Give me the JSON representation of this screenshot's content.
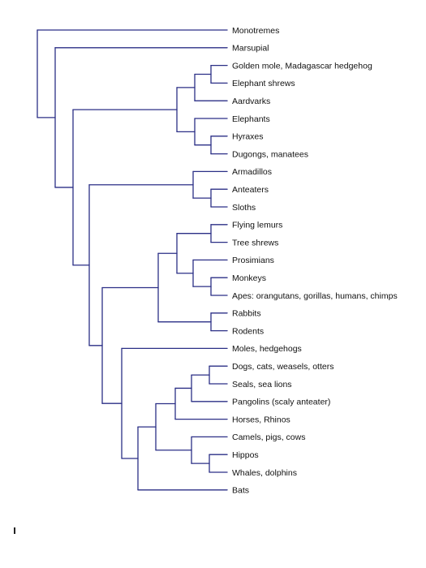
{
  "diagram": {
    "type": "phylogenetic-tree",
    "line_color": "#2b2f86",
    "taxa": [
      {
        "id": "monotremes",
        "label": "Monotremes"
      },
      {
        "id": "marsupial",
        "label": "Marsupial"
      },
      {
        "id": "golden-mole",
        "label": "Golden mole, Madagascar hedgehog"
      },
      {
        "id": "elephant-shrews",
        "label": "Elephant shrews"
      },
      {
        "id": "aardvarks",
        "label": "Aardvarks"
      },
      {
        "id": "elephants",
        "label": "Elephants"
      },
      {
        "id": "hyraxes",
        "label": "Hyraxes"
      },
      {
        "id": "dugongs",
        "label": "Dugongs, manatees"
      },
      {
        "id": "armadillos",
        "label": "Armadillos"
      },
      {
        "id": "anteaters",
        "label": "Anteaters"
      },
      {
        "id": "sloths",
        "label": "Sloths"
      },
      {
        "id": "flying-lemurs",
        "label": "Flying lemurs"
      },
      {
        "id": "tree-shrews",
        "label": "Tree shrews"
      },
      {
        "id": "prosimians",
        "label": "Prosimians"
      },
      {
        "id": "monkeys",
        "label": "Monkeys"
      },
      {
        "id": "apes",
        "label": "Apes: orangutans, gorillas, humans, chimps"
      },
      {
        "id": "rabbits",
        "label": "Rabbits"
      },
      {
        "id": "rodents",
        "label": "Rodents"
      },
      {
        "id": "moles",
        "label": "Moles, hedgehogs"
      },
      {
        "id": "dogs",
        "label": "Dogs, cats, weasels, otters"
      },
      {
        "id": "seals",
        "label": "Seals, sea lions"
      },
      {
        "id": "pangolins",
        "label": "Pangolins (scaly anteater)"
      },
      {
        "id": "horses",
        "label": "Horses, Rhinos"
      },
      {
        "id": "camels",
        "label": "Camels, pigs, cows"
      },
      {
        "id": "hippos",
        "label": "Hippos"
      },
      {
        "id": "whales",
        "label": "Whales, dolphins"
      },
      {
        "id": "bats",
        "label": "Bats"
      }
    ]
  }
}
